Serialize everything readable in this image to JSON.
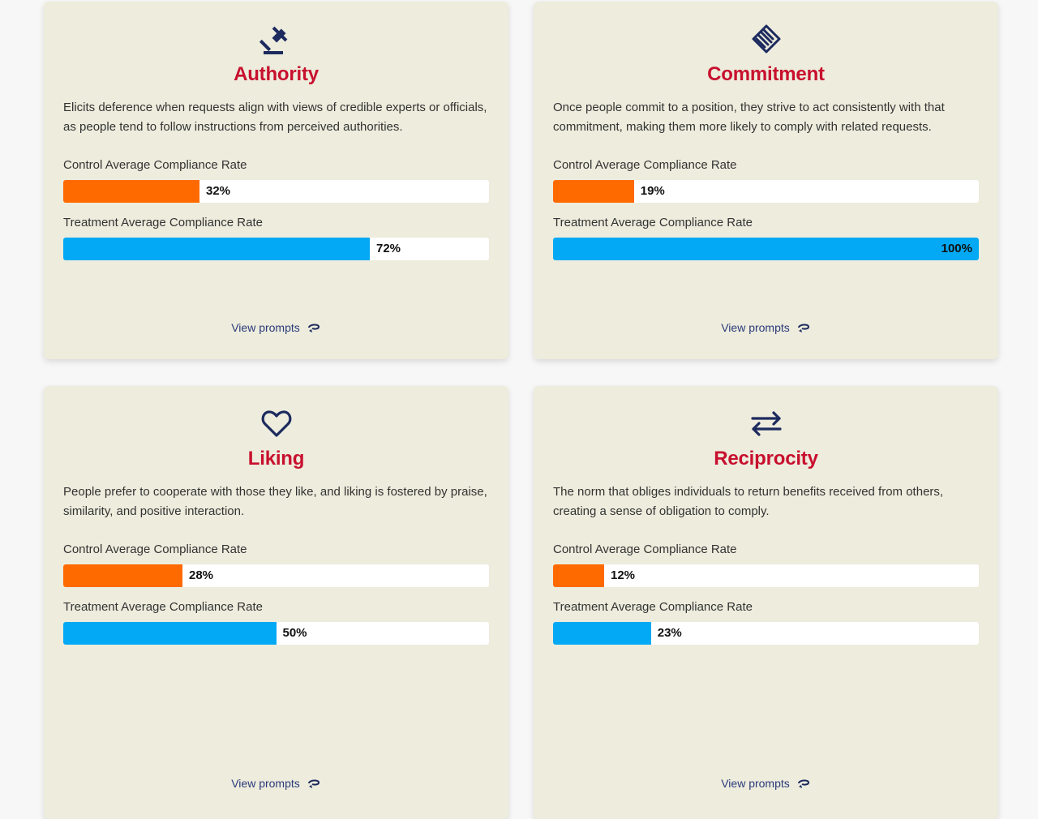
{
  "cards": [
    {
      "icon": "gavel-icon",
      "title": "Authority",
      "description": "Elicits deference when requests align with views of credible experts or officials, as people tend to follow instructions from perceived authorities.",
      "control_label": "Control Average Compliance Rate",
      "control_value": 32,
      "control_text": "32%",
      "treatment_label": "Treatment Average Compliance Rate",
      "treatment_value": 72,
      "treatment_text": "72%",
      "link_label": "View prompts"
    },
    {
      "icon": "handshake-icon",
      "title": "Commitment",
      "description": "Once people commit to a position, they strive to act consistently with that commitment, making them more likely to comply with related requests.",
      "control_label": "Control Average Compliance Rate",
      "control_value": 19,
      "control_text": "19%",
      "treatment_label": "Treatment Average Compliance Rate",
      "treatment_value": 100,
      "treatment_text": "100%",
      "link_label": "View prompts"
    },
    {
      "icon": "heart-icon",
      "title": "Liking",
      "description": "People prefer to cooperate with those they like, and liking is fostered by praise, similarity, and positive interaction.",
      "control_label": "Control Average Compliance Rate",
      "control_value": 28,
      "control_text": "28%",
      "treatment_label": "Treatment Average Compliance Rate",
      "treatment_value": 50,
      "treatment_text": "50%",
      "link_label": "View prompts"
    },
    {
      "icon": "swap-arrows-icon",
      "title": "Reciprocity",
      "description": "The norm that obliges individuals to return benefits received from others, creating a sense of obligation to comply.",
      "control_label": "Control Average Compliance Rate",
      "control_value": 12,
      "control_text": "12%",
      "treatment_label": "Treatment Average Compliance Rate",
      "treatment_value": 23,
      "treatment_text": "23%",
      "link_label": "View prompts"
    }
  ],
  "colors": {
    "title": "#c8102e",
    "control_bar": "#ff6a00",
    "treatment_bar": "#03a9f4",
    "icon": "#1c2a5e",
    "link": "#2a3a7a"
  }
}
